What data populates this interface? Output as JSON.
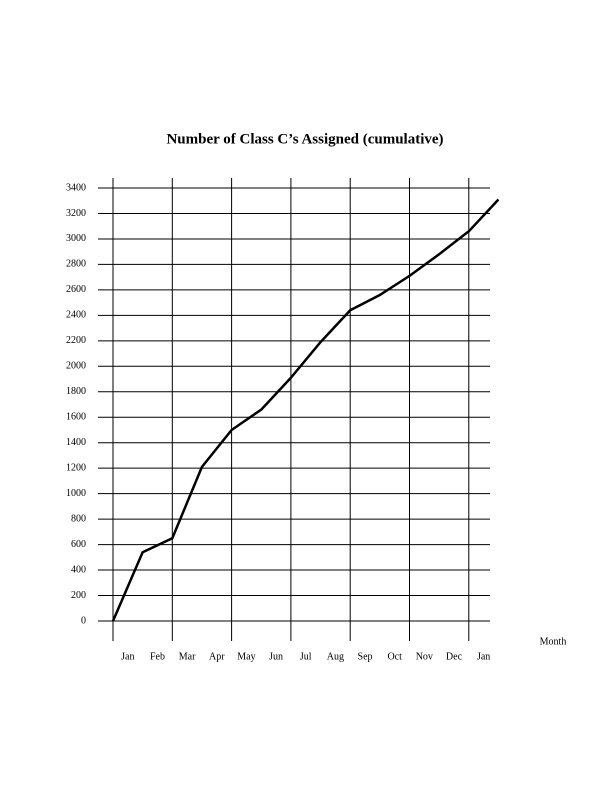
{
  "chart_data": {
    "type": "line",
    "title": "Number of Class C’s Assigned (cumulative)",
    "x_label": "Month",
    "categories": [
      "Jan",
      "Feb",
      "Mar",
      "Apr",
      "May",
      "Jun",
      "Jul",
      "Aug",
      "Sep",
      "Oct",
      "Nov",
      "Dec",
      "Jan",
      null
    ],
    "values": [
      0,
      540,
      650,
      1210,
      1500,
      1660,
      1910,
      2190,
      2440,
      2560,
      2710,
      2880,
      3060,
      3310
    ],
    "color": "#000000",
    "ylim": [
      0,
      3400
    ],
    "yticks": [
      0,
      200,
      400,
      600,
      800,
      1000,
      1200,
      1400,
      1600,
      1800,
      2000,
      2200,
      2400,
      2600,
      2800,
      3000,
      3200,
      3400
    ],
    "grid": true
  }
}
